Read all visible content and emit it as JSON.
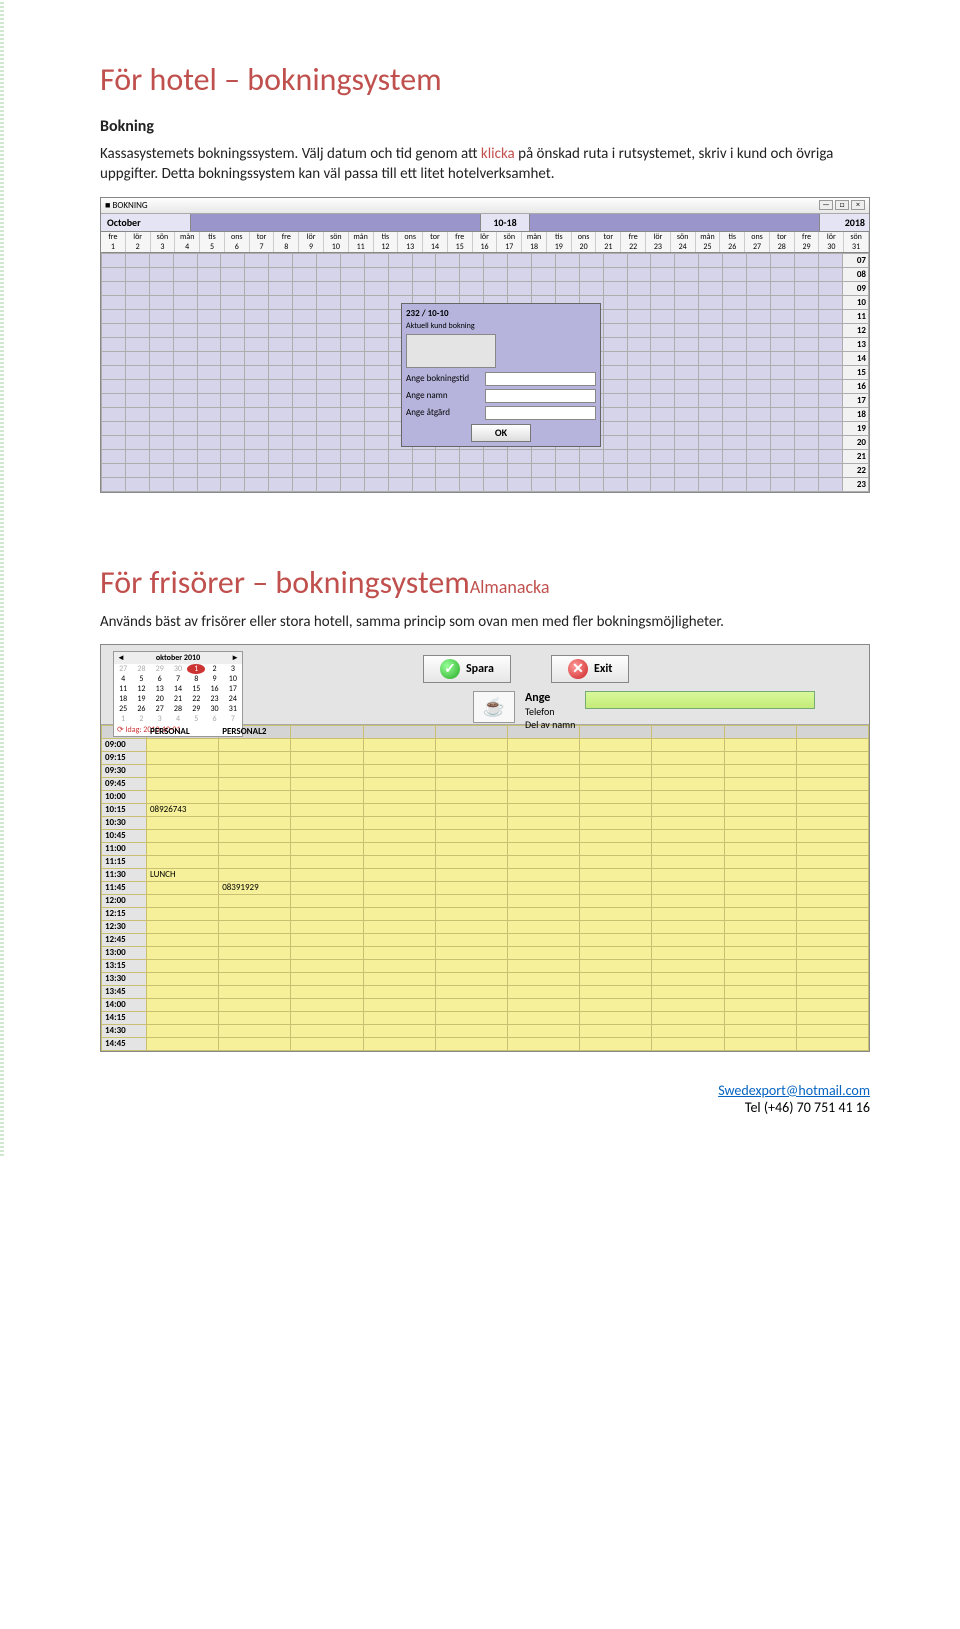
{
  "section1": {
    "title": "För hotel – bokningsystem",
    "subtitle": "Bokning",
    "body_pre": "Kassasystemets bokningssystem. Välj datum och tid genom att ",
    "body_red": "klicka",
    "body_post": " på önskad ruta i rutsystemet, skriv i kund och övriga uppgifter. Detta bokningssystem kan väl passa till ett litet hotelverksamhet."
  },
  "shot1": {
    "window_title": "BOKNING",
    "month": "October",
    "mid": "10-18",
    "year": "2018",
    "day_abbr": [
      "fre",
      "lör",
      "sön",
      "mån",
      "tis",
      "ons",
      "tor",
      "fre",
      "lör",
      "sön",
      "mån",
      "tis",
      "ons",
      "tor",
      "fre",
      "lör",
      "sön",
      "mån",
      "tis",
      "ons",
      "tor",
      "fre",
      "lör",
      "sön",
      "mån",
      "tis",
      "ons",
      "tor",
      "fre",
      "lör",
      "sön"
    ],
    "day_nums": [
      "1",
      "2",
      "3",
      "4",
      "5",
      "6",
      "7",
      "8",
      "9",
      "10",
      "11",
      "12",
      "13",
      "14",
      "15",
      "16",
      "17",
      "18",
      "19",
      "20",
      "21",
      "22",
      "23",
      "24",
      "25",
      "26",
      "27",
      "28",
      "29",
      "30",
      "31"
    ],
    "hours": [
      "07",
      "08",
      "09",
      "10",
      "11",
      "12",
      "13",
      "14",
      "15",
      "16",
      "17",
      "18",
      "19",
      "20",
      "21",
      "22",
      "23"
    ],
    "popup": {
      "title": "232 / 10-10",
      "sub": "Aktuell kund bokning",
      "f1": "Ange bokningstid",
      "f2": "Ange namn",
      "f3": "Ange åtgärd",
      "ok": "OK"
    }
  },
  "section2": {
    "title_main": "För frisörer – bokningsystem",
    "title_small": "Almanacka",
    "body": "Används bäst av frisörer eller stora hotell, samma princip som ovan men med fler bokningsmöjligheter."
  },
  "shot2": {
    "cal": {
      "month": "oktober 2010",
      "rows": [
        [
          "27",
          "28",
          "29",
          "30",
          "1",
          "2",
          "3"
        ],
        [
          "4",
          "5",
          "6",
          "7",
          "8",
          "9",
          "10"
        ],
        [
          "11",
          "12",
          "13",
          "14",
          "15",
          "16",
          "17"
        ],
        [
          "18",
          "19",
          "20",
          "21",
          "22",
          "23",
          "24"
        ],
        [
          "25",
          "26",
          "27",
          "28",
          "29",
          "30",
          "31"
        ],
        [
          "1",
          "2",
          "3",
          "4",
          "5",
          "6",
          "7"
        ]
      ],
      "today": "Idag: 2010-10-01"
    },
    "btn_save": "Spara",
    "btn_exit": "Exit",
    "ange": "Ange",
    "ange_l1": "Telefon",
    "ange_l2": "Del av namn",
    "columns": [
      "",
      "PERSONAL",
      "PERSONAL2",
      "",
      "",
      "",
      "",
      "",
      "",
      "",
      ""
    ],
    "times": [
      "09:00",
      "09:15",
      "09:30",
      "09:45",
      "10:00",
      "10:15",
      "10:30",
      "10:45",
      "11:00",
      "11:15",
      "11:30",
      "11:45",
      "12:00",
      "12:15",
      "12:30",
      "12:45",
      "13:00",
      "13:15",
      "13:30",
      "13:45",
      "14:00",
      "14:15",
      "14:30",
      "14:45"
    ],
    "entries": {
      "10:15_1": "08926743",
      "11:30_1": "LUNCH",
      "11:45_2": "08391929"
    }
  },
  "footer": {
    "email": "Swedexport@hotmail.com",
    "tel": "Tel   (+46) 70 751 41 16"
  }
}
